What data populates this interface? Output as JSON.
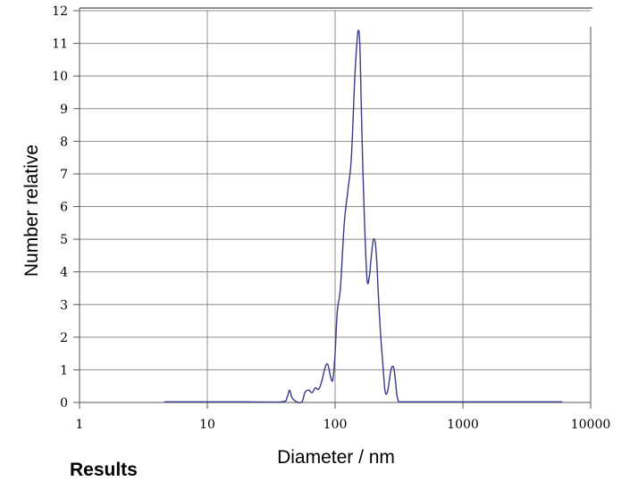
{
  "chart_data": {
    "type": "line",
    "title": "",
    "xlabel": "Diameter / nm",
    "ylabel": "Number relative",
    "x_scale": "log",
    "xlim": [
      1,
      10000
    ],
    "ylim": [
      0,
      12
    ],
    "x_ticks": [
      1,
      10,
      100,
      1000,
      10000
    ],
    "x_tick_labels": [
      "1",
      "10",
      "100",
      "1000",
      "10000"
    ],
    "y_ticks": [
      0,
      1,
      2,
      3,
      4,
      5,
      6,
      7,
      8,
      9,
      10,
      11,
      12
    ],
    "y_tick_labels": [
      "0",
      "1",
      "2",
      "3",
      "4",
      "5",
      "6",
      "7",
      "8",
      "9",
      "10",
      "11",
      "12"
    ],
    "grid": true,
    "legend": "none",
    "series": [
      {
        "color": "#3a3a8c",
        "x": [
          4.6,
          20,
          38,
          42,
          44,
          46,
          50,
          55,
          58,
          62,
          66,
          70,
          74,
          78,
          84,
          88,
          92,
          96,
          100,
          104,
          110,
          118,
          126,
          134,
          142,
          148,
          152,
          156,
          160,
          164,
          170,
          178,
          186,
          190,
          196,
          200,
          206,
          212,
          218,
          226,
          236,
          246,
          256,
          264,
          272,
          280,
          288,
          296,
          304,
          312,
          320,
          330,
          340,
          360,
          400,
          1000,
          3000,
          6000
        ],
        "y": [
          0.02,
          0.02,
          0.02,
          0.15,
          0.38,
          0.15,
          0.02,
          0.02,
          0.3,
          0.38,
          0.3,
          0.45,
          0.4,
          0.6,
          1.1,
          1.15,
          0.8,
          0.7,
          1.5,
          2.8,
          3.5,
          5.5,
          6.5,
          7.5,
          9.8,
          11.0,
          11.4,
          11.0,
          9.2,
          7.5,
          5.5,
          3.75,
          3.9,
          4.3,
          4.8,
          5.0,
          4.9,
          4.3,
          3.3,
          2.2,
          1.2,
          0.35,
          0.3,
          0.6,
          0.95,
          1.1,
          1.05,
          0.7,
          0.25,
          0.05,
          0.02,
          0.02,
          0.02,
          0.02,
          0.02,
          0.02,
          0.02,
          0.02
        ]
      }
    ]
  },
  "partial_heading": "Results"
}
